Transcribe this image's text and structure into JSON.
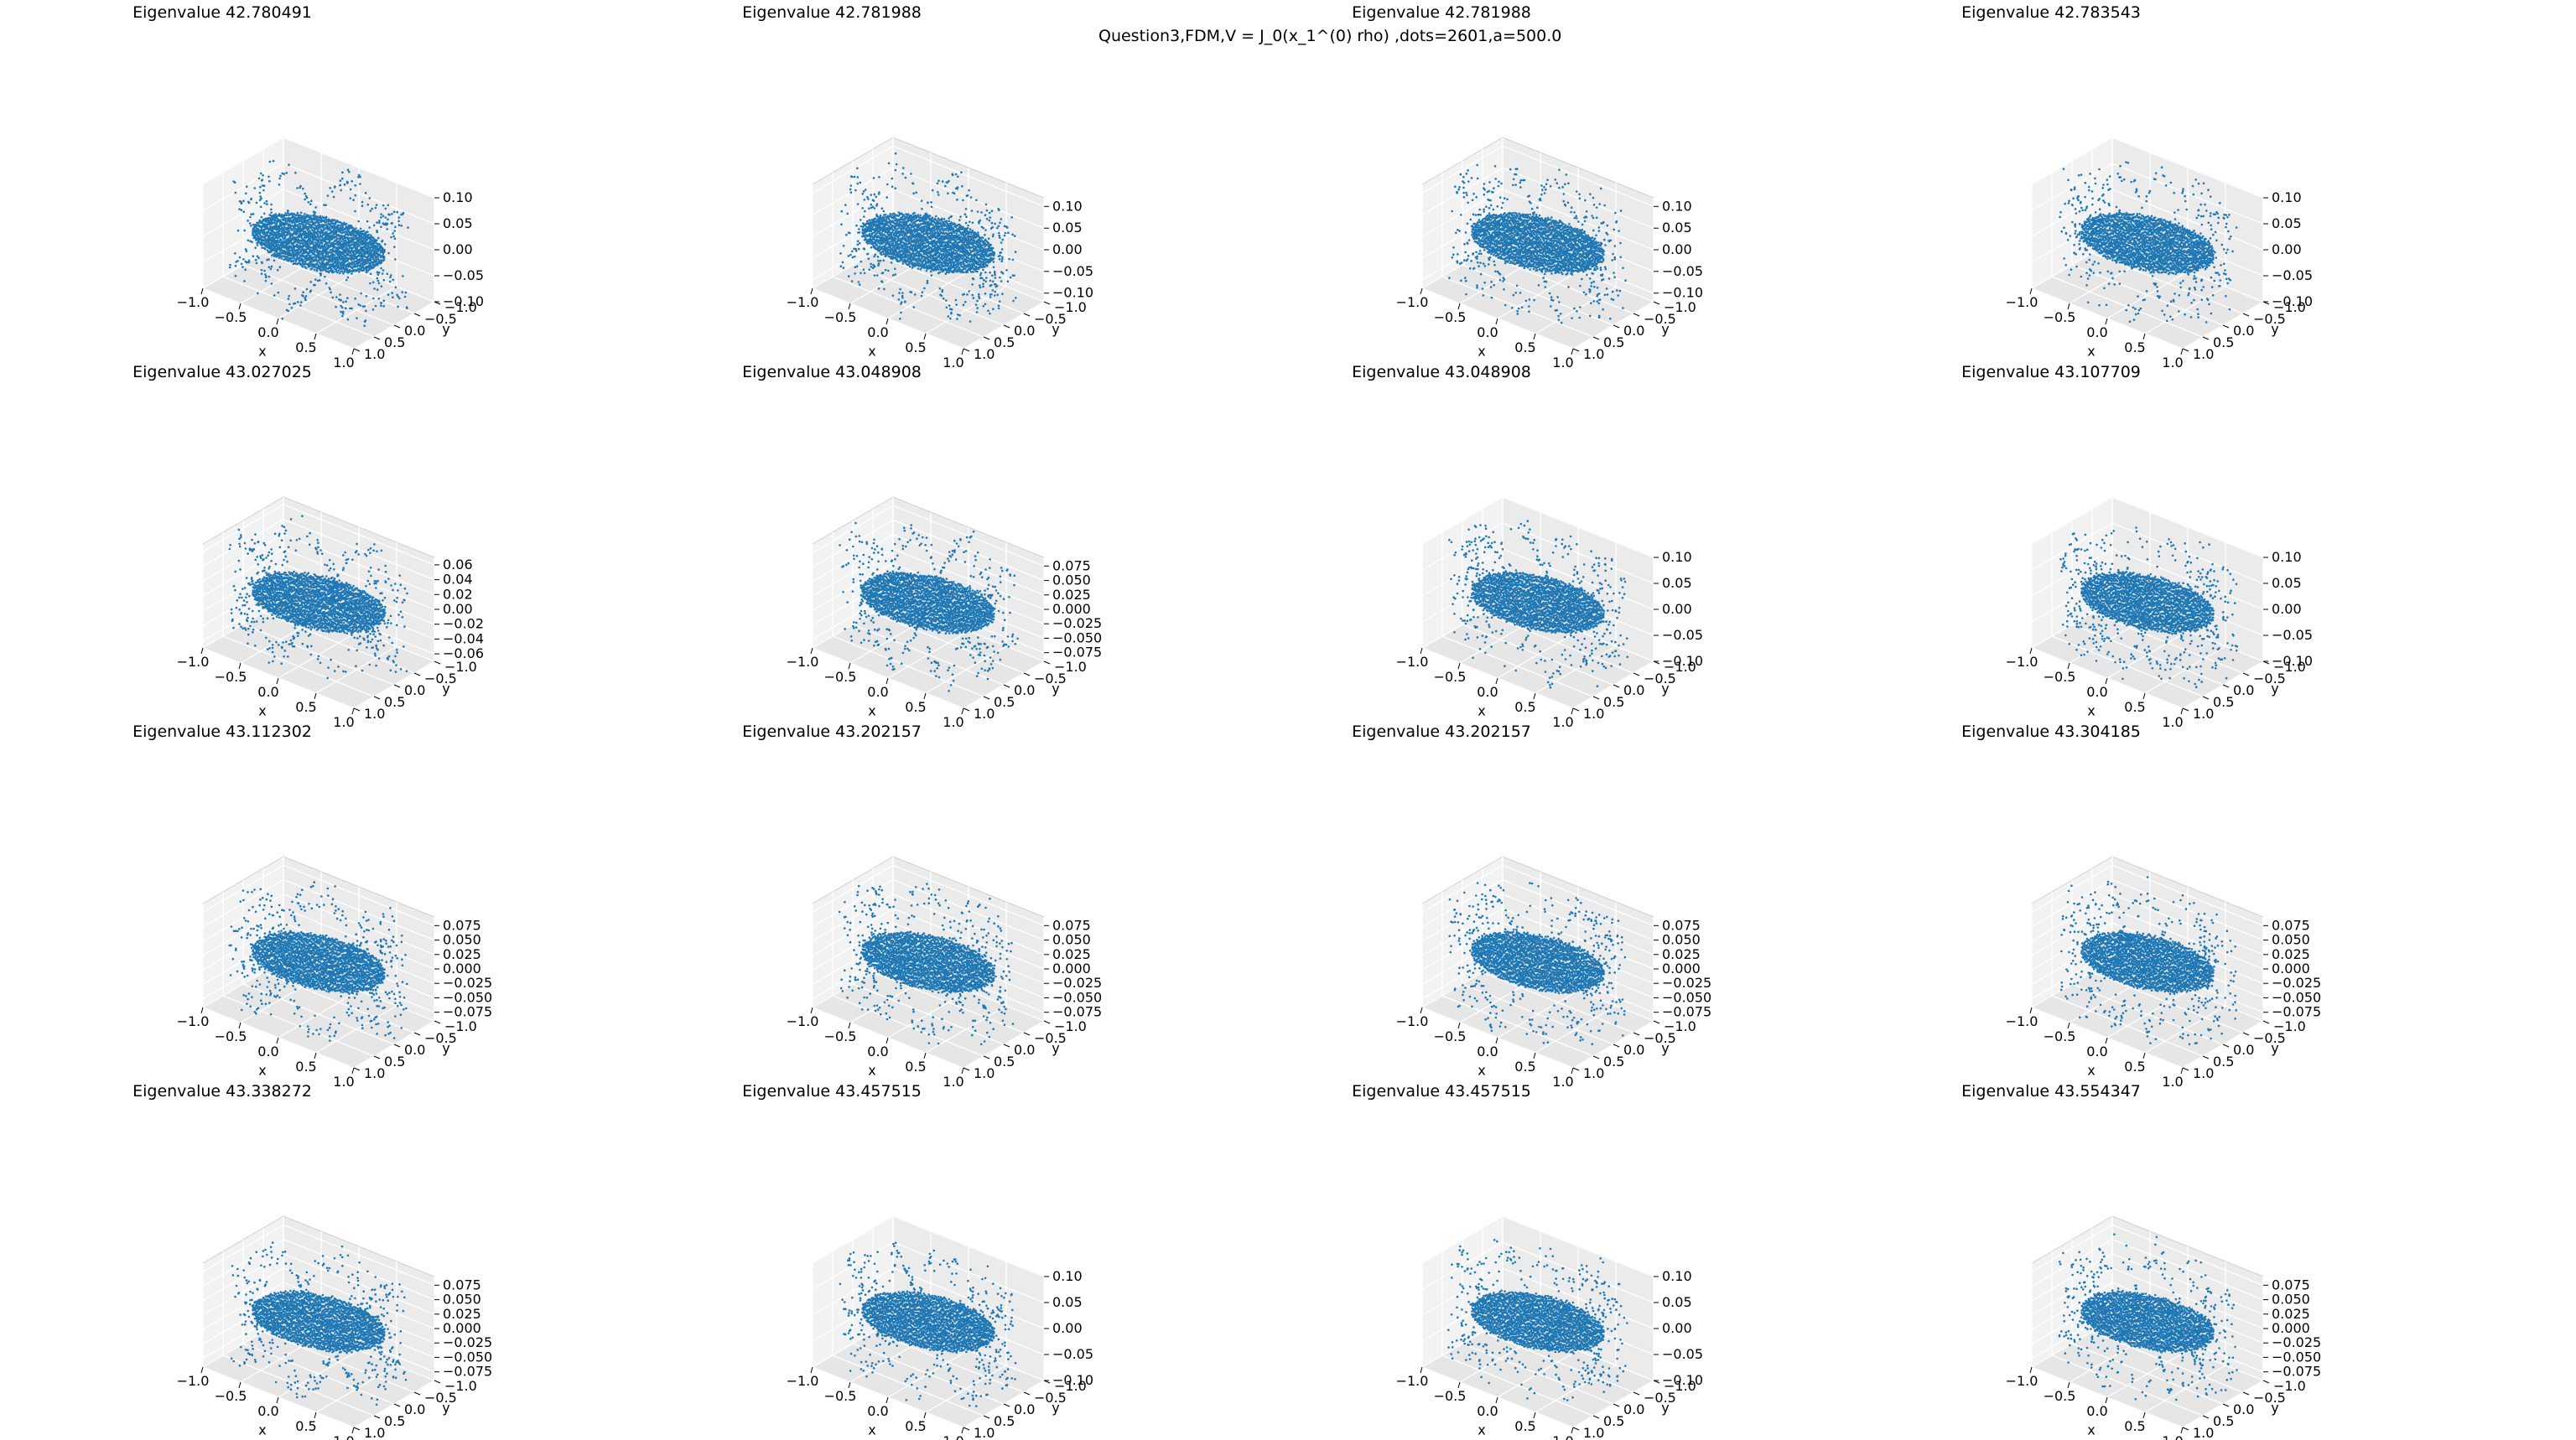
{
  "suptitle": "Question3,FDM,V = J_0(x_1^(0) rho) ,dots=2601,a=500.0",
  "chart_data": [
    {
      "type": "scatter",
      "projection": "3d",
      "title": "Eigenvalue 42.780491",
      "eigenvalue": 42.780491,
      "xlabel": "x",
      "ylabel": "y",
      "zlabel": "",
      "xlim": [
        -1.0,
        1.0
      ],
      "ylim": [
        -1.0,
        1.0
      ],
      "xticks": [
        "−1.0",
        "−0.5",
        "0.0",
        "0.5",
        "1.0"
      ],
      "yticks": [
        "−1.0",
        "−0.5",
        "0.0",
        "0.5",
        "1.0"
      ],
      "zticks": [
        "−0.10",
        "−0.05",
        "0.00",
        "0.05",
        "0.10"
      ],
      "zlim": [
        -0.1,
        0.1
      ],
      "grid": true,
      "color": "#1f77b4"
    },
    {
      "type": "scatter",
      "projection": "3d",
      "title": "Eigenvalue 42.781988",
      "eigenvalue": 42.781988,
      "xlabel": "x",
      "ylabel": "y",
      "zlabel": "",
      "xlim": [
        -1.0,
        1.0
      ],
      "ylim": [
        -1.0,
        1.0
      ],
      "xticks": [
        "−1.0",
        "−0.5",
        "0.0",
        "0.5",
        "1.0"
      ],
      "yticks": [
        "−1.0",
        "−0.5",
        "0.0",
        "0.5",
        "1.0"
      ],
      "zticks": [
        "−0.10",
        "−0.05",
        "0.00",
        "0.05",
        "0.10"
      ],
      "zlim": [
        -0.12,
        0.12
      ],
      "grid": true,
      "color": "#1f77b4"
    },
    {
      "type": "scatter",
      "projection": "3d",
      "title": "Eigenvalue 42.781988",
      "eigenvalue": 42.781988,
      "xlabel": "x",
      "ylabel": "y",
      "zlabel": "",
      "xlim": [
        -1.0,
        1.0
      ],
      "ylim": [
        -1.0,
        1.0
      ],
      "xticks": [
        "−1.0",
        "−0.5",
        "0.0",
        "0.5",
        "1.0"
      ],
      "yticks": [
        "−1.0",
        "−0.5",
        "0.0",
        "0.5",
        "1.0"
      ],
      "zticks": [
        "−0.10",
        "−0.05",
        "0.00",
        "0.05",
        "0.10"
      ],
      "zlim": [
        -0.12,
        0.12
      ],
      "grid": true,
      "color": "#1f77b4"
    },
    {
      "type": "scatter",
      "projection": "3d",
      "title": "Eigenvalue 42.783543",
      "eigenvalue": 42.783543,
      "xlabel": "x",
      "ylabel": "y",
      "zlabel": "",
      "xlim": [
        -1.0,
        1.0
      ],
      "ylim": [
        -1.0,
        1.0
      ],
      "xticks": [
        "−1.0",
        "−0.5",
        "0.0",
        "0.5",
        "1.0"
      ],
      "yticks": [
        "−1.0",
        "−0.5",
        "0.0",
        "0.5",
        "1.0"
      ],
      "zticks": [
        "−0.10",
        "−0.05",
        "0.00",
        "0.05",
        "0.10"
      ],
      "zlim": [
        -0.1,
        0.1
      ],
      "grid": true,
      "color": "#1f77b4"
    },
    {
      "type": "scatter",
      "projection": "3d",
      "title": "Eigenvalue 43.027025",
      "eigenvalue": 43.027025,
      "xlabel": "x",
      "ylabel": "y",
      "zlabel": "",
      "xlim": [
        -1.0,
        1.0
      ],
      "ylim": [
        -1.0,
        1.0
      ],
      "xticks": [
        "−1.0",
        "−0.5",
        "0.0",
        "0.5",
        "1.0"
      ],
      "yticks": [
        "−1.0",
        "−0.5",
        "0.0",
        "0.5",
        "1.0"
      ],
      "zticks": [
        "−0.06",
        "−0.04",
        "−0.02",
        "0.00",
        "0.02",
        "0.04",
        "0.06"
      ],
      "zlim": [
        -0.07,
        0.07
      ],
      "grid": true,
      "color": "#1f77b4"
    },
    {
      "type": "scatter",
      "projection": "3d",
      "title": "Eigenvalue 43.048908",
      "eigenvalue": 43.048908,
      "xlabel": "x",
      "ylabel": "y",
      "zlabel": "",
      "xlim": [
        -1.0,
        1.0
      ],
      "ylim": [
        -1.0,
        1.0
      ],
      "xticks": [
        "−1.0",
        "−0.5",
        "0.0",
        "0.5",
        "1.0"
      ],
      "yticks": [
        "−1.0",
        "−0.5",
        "0.0",
        "0.5",
        "1.0"
      ],
      "zticks": [
        "−0.075",
        "−0.050",
        "−0.025",
        "0.000",
        "0.025",
        "0.050",
        "0.075"
      ],
      "zlim": [
        -0.09,
        0.09
      ],
      "grid": true,
      "color": "#1f77b4"
    },
    {
      "type": "scatter",
      "projection": "3d",
      "title": "Eigenvalue 43.048908",
      "eigenvalue": 43.048908,
      "xlabel": "x",
      "ylabel": "y",
      "zlabel": "",
      "xlim": [
        -1.0,
        1.0
      ],
      "ylim": [
        -1.0,
        1.0
      ],
      "xticks": [
        "−1.0",
        "−0.5",
        "0.0",
        "0.5",
        "1.0"
      ],
      "yticks": [
        "−1.0",
        "−0.5",
        "0.0",
        "0.5",
        "1.0"
      ],
      "zticks": [
        "−0.10",
        "−0.05",
        "0.00",
        "0.05",
        "0.10"
      ],
      "zlim": [
        -0.1,
        0.1
      ],
      "grid": true,
      "color": "#1f77b4"
    },
    {
      "type": "scatter",
      "projection": "3d",
      "title": "Eigenvalue 43.107709",
      "eigenvalue": 43.107709,
      "xlabel": "x",
      "ylabel": "y",
      "zlabel": "",
      "xlim": [
        -1.0,
        1.0
      ],
      "ylim": [
        -1.0,
        1.0
      ],
      "xticks": [
        "−1.0",
        "−0.5",
        "0.0",
        "0.5",
        "1.0"
      ],
      "yticks": [
        "−1.0",
        "−0.5",
        "0.0",
        "0.5",
        "1.0"
      ],
      "zticks": [
        "−0.10",
        "−0.05",
        "0.00",
        "0.05",
        "0.10"
      ],
      "zlim": [
        -0.1,
        0.1
      ],
      "grid": true,
      "color": "#1f77b4"
    },
    {
      "type": "scatter",
      "projection": "3d",
      "title": "Eigenvalue 43.112302",
      "eigenvalue": 43.112302,
      "xlabel": "x",
      "ylabel": "y",
      "zlabel": "",
      "xlim": [
        -1.0,
        1.0
      ],
      "ylim": [
        -1.0,
        1.0
      ],
      "xticks": [
        "−1.0",
        "−0.5",
        "0.0",
        "0.5",
        "1.0"
      ],
      "yticks": [
        "−1.0",
        "−0.5",
        "0.0",
        "0.5",
        "1.0"
      ],
      "zticks": [
        "−0.075",
        "−0.050",
        "−0.025",
        "0.000",
        "0.025",
        "0.050",
        "0.075"
      ],
      "zlim": [
        -0.09,
        0.09
      ],
      "grid": true,
      "color": "#1f77b4"
    },
    {
      "type": "scatter",
      "projection": "3d",
      "title": "Eigenvalue 43.202157",
      "eigenvalue": 43.202157,
      "xlabel": "x",
      "ylabel": "y",
      "zlabel": "",
      "xlim": [
        -1.0,
        1.0
      ],
      "ylim": [
        -1.0,
        1.0
      ],
      "xticks": [
        "−1.0",
        "−0.5",
        "0.0",
        "0.5",
        "1.0"
      ],
      "yticks": [
        "−1.0",
        "−0.5",
        "0.0",
        "0.5",
        "1.0"
      ],
      "zticks": [
        "−0.075",
        "−0.050",
        "−0.025",
        "0.000",
        "0.025",
        "0.050",
        "0.075"
      ],
      "zlim": [
        -0.09,
        0.09
      ],
      "grid": true,
      "color": "#1f77b4"
    },
    {
      "type": "scatter",
      "projection": "3d",
      "title": "Eigenvalue 43.202157",
      "eigenvalue": 43.202157,
      "xlabel": "x",
      "ylabel": "y",
      "zlabel": "",
      "xlim": [
        -1.0,
        1.0
      ],
      "ylim": [
        -1.0,
        1.0
      ],
      "xticks": [
        "−1.0",
        "−0.5",
        "0.0",
        "0.5",
        "1.0"
      ],
      "yticks": [
        "−1.0",
        "−0.5",
        "0.0",
        "0.5",
        "1.0"
      ],
      "zticks": [
        "−0.075",
        "−0.050",
        "−0.025",
        "0.000",
        "0.025",
        "0.050",
        "0.075"
      ],
      "zlim": [
        -0.09,
        0.09
      ],
      "grid": true,
      "color": "#1f77b4"
    },
    {
      "type": "scatter",
      "projection": "3d",
      "title": "Eigenvalue 43.304185",
      "eigenvalue": 43.304185,
      "xlabel": "x",
      "ylabel": "y",
      "zlabel": "",
      "xlim": [
        -1.0,
        1.0
      ],
      "ylim": [
        -1.0,
        1.0
      ],
      "xticks": [
        "−1.0",
        "−0.5",
        "0.0",
        "0.5",
        "1.0"
      ],
      "yticks": [
        "−1.0",
        "−0.5",
        "0.0",
        "0.5",
        "1.0"
      ],
      "zticks": [
        "−0.075",
        "−0.050",
        "−0.025",
        "0.000",
        "0.025",
        "0.050",
        "0.075"
      ],
      "zlim": [
        -0.09,
        0.09
      ],
      "grid": true,
      "color": "#1f77b4"
    },
    {
      "type": "scatter",
      "projection": "3d",
      "title": "Eigenvalue 43.338272",
      "eigenvalue": 43.338272,
      "xlabel": "x",
      "ylabel": "y",
      "zlabel": "",
      "xlim": [
        -1.0,
        1.0
      ],
      "ylim": [
        -1.0,
        1.0
      ],
      "xticks": [
        "−1.0",
        "−0.5",
        "0.0",
        "0.5",
        "1.0"
      ],
      "yticks": [
        "−1.0",
        "−0.5",
        "0.0",
        "0.5",
        "1.0"
      ],
      "zticks": [
        "−0.075",
        "−0.050",
        "−0.025",
        "0.000",
        "0.025",
        "0.050",
        "0.075"
      ],
      "zlim": [
        -0.09,
        0.09
      ],
      "grid": true,
      "color": "#1f77b4"
    },
    {
      "type": "scatter",
      "projection": "3d",
      "title": "Eigenvalue 43.457515",
      "eigenvalue": 43.457515,
      "xlabel": "x",
      "ylabel": "y",
      "zlabel": "",
      "xlim": [
        -1.0,
        1.0
      ],
      "ylim": [
        -1.0,
        1.0
      ],
      "xticks": [
        "−1.0",
        "−0.5",
        "0.0",
        "0.5",
        "1.0"
      ],
      "yticks": [
        "−1.0",
        "−0.5",
        "0.0",
        "0.5",
        "1.0"
      ],
      "zticks": [
        "−0.10",
        "−0.05",
        "0.00",
        "0.05",
        "0.10"
      ],
      "zlim": [
        -0.1,
        0.1
      ],
      "grid": true,
      "color": "#1f77b4"
    },
    {
      "type": "scatter",
      "projection": "3d",
      "title": "Eigenvalue 43.457515",
      "eigenvalue": 43.457515,
      "xlabel": "x",
      "ylabel": "y",
      "zlabel": "",
      "xlim": [
        -1.0,
        1.0
      ],
      "ylim": [
        -1.0,
        1.0
      ],
      "xticks": [
        "−1.0",
        "−0.5",
        "0.0",
        "0.5",
        "1.0"
      ],
      "yticks": [
        "−1.0",
        "−0.5",
        "0.0",
        "0.5",
        "1.0"
      ],
      "zticks": [
        "−0.10",
        "−0.05",
        "0.00",
        "0.05",
        "0.10"
      ],
      "zlim": [
        -0.1,
        0.1
      ],
      "grid": true,
      "color": "#1f77b4"
    },
    {
      "type": "scatter",
      "projection": "3d",
      "title": "Eigenvalue 43.554347",
      "eigenvalue": 43.554347,
      "xlabel": "x",
      "ylabel": "y",
      "zlabel": "",
      "xlim": [
        -1.0,
        1.0
      ],
      "ylim": [
        -1.0,
        1.0
      ],
      "xticks": [
        "−1.0",
        "−0.5",
        "0.0",
        "0.5",
        "1.0"
      ],
      "yticks": [
        "−1.0",
        "−0.5",
        "0.0",
        "0.5",
        "1.0"
      ],
      "zticks": [
        "−0.075",
        "−0.050",
        "−0.025",
        "0.000",
        "0.025",
        "0.050",
        "0.075"
      ],
      "zlim": [
        -0.09,
        0.09
      ],
      "grid": true,
      "color": "#1f77b4"
    }
  ]
}
